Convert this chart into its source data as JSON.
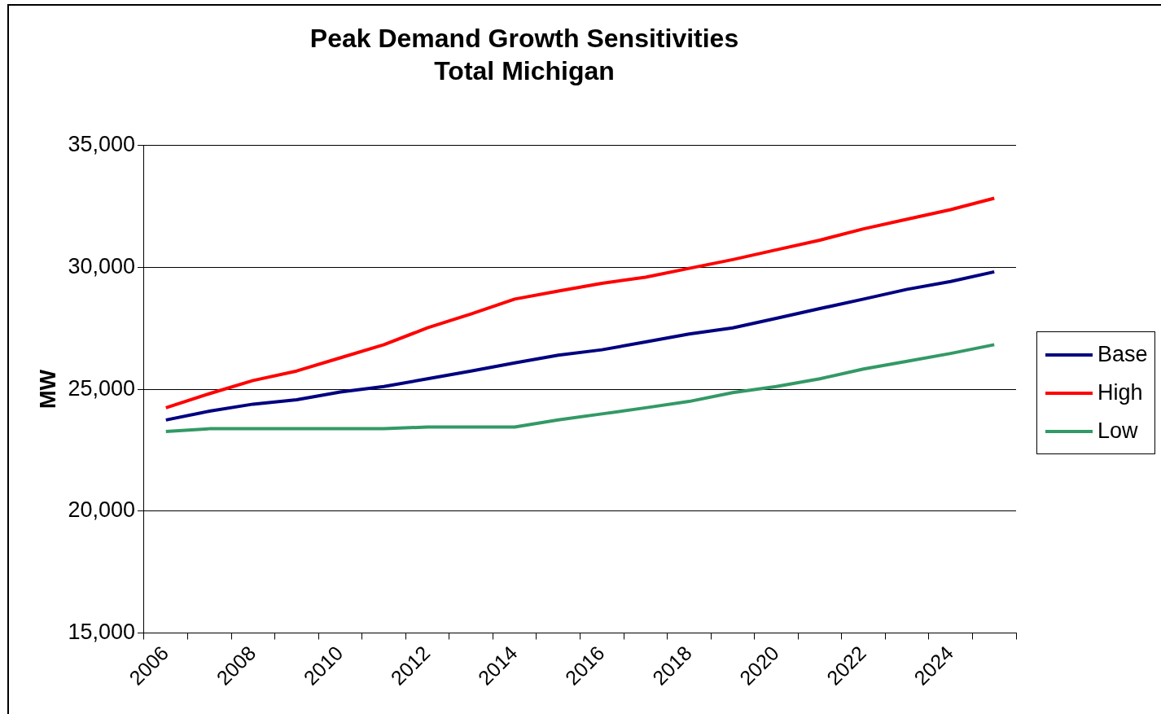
{
  "chart_data": {
    "type": "line",
    "title": "Peak Demand Growth Sensitivities",
    "subtitle": "Total Michigan",
    "ylabel": "MW",
    "categories": [
      "2006",
      null,
      "2008",
      null,
      "2010",
      null,
      "2012",
      null,
      "2014",
      null,
      "2016",
      null,
      "2018",
      null,
      "2020",
      null,
      "2022",
      null,
      "2024",
      null
    ],
    "series": [
      {
        "name": "Base",
        "color": "#000080",
        "values": [
          23740,
          24100,
          24390,
          24570,
          24890,
          25110,
          25430,
          25750,
          26080,
          26400,
          26620,
          26940,
          27270,
          27520,
          27910,
          28310,
          28700,
          29100,
          29420,
          29820
        ]
      },
      {
        "name": "High",
        "color": "#ff0000",
        "values": [
          24240,
          24820,
          25360,
          25750,
          26290,
          26830,
          27520,
          28090,
          28700,
          29030,
          29350,
          29600,
          29960,
          30320,
          30720,
          31120,
          31580,
          31980,
          32370,
          32840
        ]
      },
      {
        "name": "Low",
        "color": "#339966",
        "values": [
          23270,
          23380,
          23380,
          23380,
          23380,
          23380,
          23450,
          23450,
          23450,
          23740,
          23990,
          24240,
          24500,
          24860,
          25110,
          25430,
          25830,
          26150,
          26470,
          26830
        ]
      }
    ],
    "ylim": [
      15000,
      35000
    ],
    "yticks": [
      {
        "value": 15000,
        "label": "15,000"
      },
      {
        "value": 20000,
        "label": "20,000"
      },
      {
        "value": 25000,
        "label": "25,000"
      },
      {
        "value": 30000,
        "label": "30,000"
      },
      {
        "value": 35000,
        "label": "35,000"
      }
    ],
    "grid": "y",
    "legend": "right",
    "marker": "none",
    "line_style": "solid"
  }
}
